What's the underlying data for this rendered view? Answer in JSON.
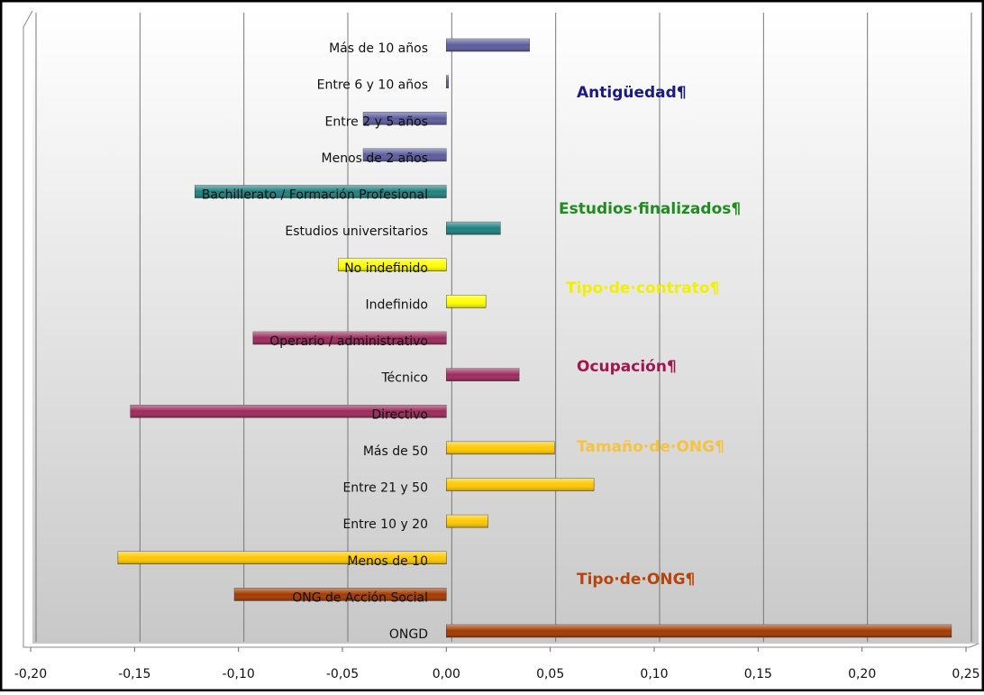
{
  "chart_data": {
    "type": "bar",
    "orientation": "horizontal",
    "categories": [
      "Más de 10 años",
      "Entre 6 y 10 años",
      "Entre 2 y 5 años",
      "Menos de 2 años",
      "Bachillerato / Formación Profesional",
      "Estudios universitarios",
      "No indefinido",
      "Indefinido",
      "Operario / administrativo",
      "Técnico",
      "Directivo",
      "Más de 50",
      "Entre 21 y 50",
      "Entre 10 y 20",
      "Menos de 10",
      "ONG de Acción Social",
      "ONGD"
    ],
    "values": [
      0.04,
      0.001,
      -0.04,
      -0.04,
      -0.121,
      0.026,
      -0.052,
      0.019,
      -0.093,
      0.035,
      -0.152,
      0.052,
      0.071,
      0.02,
      -0.158,
      -0.102,
      0.243
    ],
    "colors": [
      "#5c5c9e",
      "#5c5c9e",
      "#5c5c9e",
      "#5c5c9e",
      "#1f8080",
      "#1f8080",
      "#ffff00",
      "#ffff00",
      "#9c2a5c",
      "#9c2a5c",
      "#9c2a5c",
      "#ffc800",
      "#ffc800",
      "#ffc800",
      "#ffc800",
      "#a33a00",
      "#a33a00"
    ],
    "xlim": [
      -0.2,
      0.25
    ],
    "xticks": [
      {
        "value": -0.2,
        "label": "-0,20"
      },
      {
        "value": -0.15,
        "label": "-0,15"
      },
      {
        "value": -0.1,
        "label": "-0,10"
      },
      {
        "value": -0.05,
        "label": "-0,05"
      },
      {
        "value": 0,
        "label": "0,00"
      },
      {
        "value": 0.05,
        "label": "0,05"
      },
      {
        "value": 0.1,
        "label": "0,10"
      },
      {
        "value": 0.15,
        "label": "0,15"
      },
      {
        "value": 0.2,
        "label": "0,20"
      },
      {
        "value": 0.25,
        "label": "0,25"
      }
    ],
    "grid": true,
    "annotations": [
      {
        "text": "Antigüedad¶",
        "color": "#1a1a80"
      },
      {
        "text": "Estudios·finalizados¶",
        "color": "#1e8c1e"
      },
      {
        "text": "Tipo·de·contrato¶",
        "color": "#f0f000"
      },
      {
        "text": "Ocupación¶",
        "color": "#a0174f"
      },
      {
        "text": "Tamaño·de·ONG¶",
        "color": "#f5c242"
      },
      {
        "text": "Tipo·de·ONG¶",
        "color": "#b8440b"
      }
    ]
  }
}
